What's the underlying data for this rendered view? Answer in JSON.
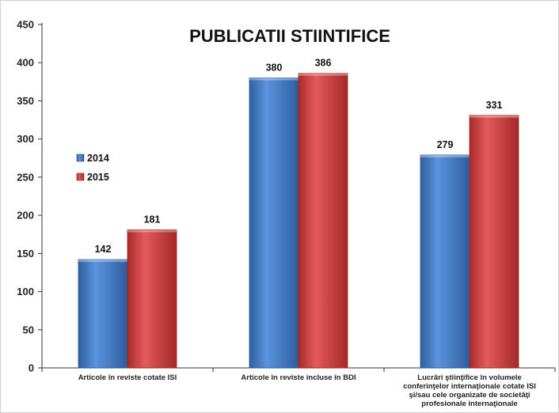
{
  "chart_data": {
    "type": "bar",
    "title": "PUBLICATII STIINTIFICE",
    "categories": [
      [
        "Articole în reviste cotate ISI"
      ],
      [
        "Articole în reviste incluse în BDI"
      ],
      [
        "Lucrări ştiinţifice în volumele",
        "conferinţelor internaţionale cotate ISI",
        "şi/sau cele organizate de societăţi",
        "profesionale internaţionale"
      ]
    ],
    "series": [
      {
        "name": "2014",
        "values": [
          142,
          380,
          279
        ],
        "color": "#3f78c8"
      },
      {
        "name": "2015",
        "values": [
          181,
          386,
          331
        ],
        "color": "#d13b3b"
      }
    ],
    "ylim": [
      0,
      450
    ],
    "yticks": [
      0,
      50,
      100,
      150,
      200,
      250,
      300,
      350,
      400,
      450
    ],
    "legend_position": "left-middle"
  }
}
